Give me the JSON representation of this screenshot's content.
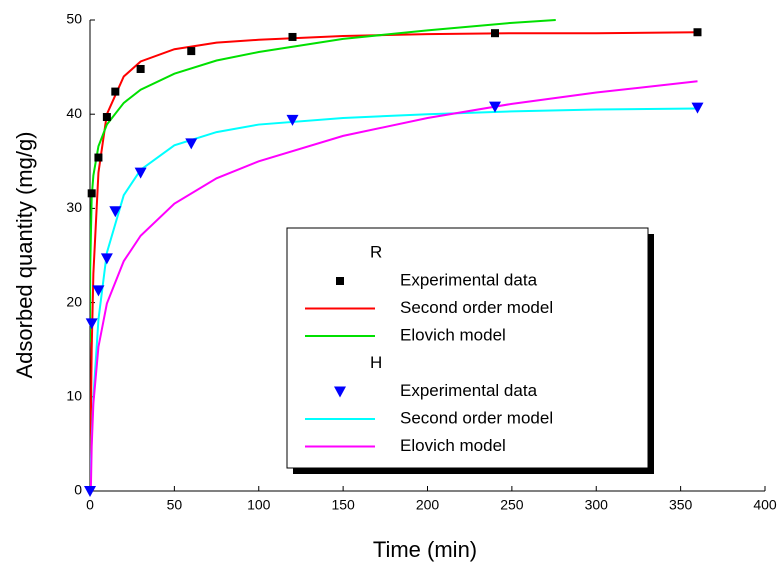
{
  "chart_data": {
    "type": "scatter-line",
    "x_label": "Time (min)",
    "y_label": "Adsorbed quantity (mg/g)",
    "xlim": [
      0,
      400
    ],
    "xticks": [
      0,
      50,
      100,
      150,
      200,
      250,
      300,
      350,
      400
    ],
    "ylim": [
      0,
      50
    ],
    "yticks": [
      0,
      10,
      20,
      30,
      40,
      50
    ],
    "groups": [
      {
        "name": "R",
        "series": [
          {
            "name": "Experimental data",
            "kind": "scatter",
            "marker": "square",
            "color": "#000000",
            "x": [
              1,
              5,
              10,
              15,
              30,
              60,
              120,
              240,
              360
            ],
            "values": [
              31.6,
              35.4,
              39.7,
              42.4,
              44.8,
              46.7,
              48.2,
              48.6,
              48.7
            ]
          },
          {
            "name": "Second order model",
            "kind": "line",
            "color": "#ff0000",
            "x": [
              0,
              1,
              2,
              5,
              10,
              20,
              30,
              50,
              75,
              100,
              150,
              200,
              250,
              300,
              360
            ],
            "values": [
              0,
              15.1,
              23.1,
              33.8,
              40.0,
              44.0,
              45.6,
              46.9,
              47.6,
              47.9,
              48.3,
              48.5,
              48.6,
              48.6,
              48.7
            ]
          },
          {
            "name": "Elovich model",
            "kind": "line",
            "color": "#00e000",
            "x": [
              0.01,
              0.1,
              1,
              2,
              5,
              10,
              20,
              30,
              50,
              75,
              100,
              150,
              200,
              250,
              276
            ],
            "values": [
              15.8,
              23.5,
              31.2,
              33.5,
              36.6,
              38.9,
              41.2,
              42.6,
              44.3,
              45.7,
              46.6,
              48.0,
              48.9,
              49.7,
              50.0
            ]
          }
        ]
      },
      {
        "name": "H",
        "series": [
          {
            "name": "Experimental data",
            "kind": "scatter",
            "marker": "triangle-down",
            "color": "#0000ff",
            "x": [
              0,
              1,
              5,
              10,
              15,
              30,
              60,
              120,
              240,
              360
            ],
            "values": [
              0,
              17.8,
              21.3,
              24.7,
              29.7,
              33.8,
              36.9,
              39.4,
              40.8,
              40.7
            ]
          },
          {
            "name": "Second order model",
            "kind": "line",
            "color": "#00ffff",
            "x": [
              0,
              1,
              2,
              5,
              10,
              20,
              30,
              50,
              75,
              100,
              150,
              200,
              250,
              300,
              360
            ],
            "values": [
              0,
              5.6,
              9.9,
              18.2,
              25.3,
              31.4,
              34.1,
              36.7,
              38.1,
              38.9,
              39.6,
              40.0,
              40.3,
              40.5,
              40.6
            ]
          },
          {
            "name": "Elovich model",
            "kind": "line",
            "color": "#ff00ff",
            "x": [
              0.5,
              1,
              2,
              5,
              10,
              20,
              30,
              50,
              75,
              100,
              150,
              200,
              250,
              300,
              360
            ],
            "values": [
              0.1,
              4.7,
              9.3,
              15.3,
              19.9,
              24.4,
              27.1,
              30.5,
              33.2,
              35.0,
              37.7,
              39.6,
              41.1,
              42.3,
              43.5
            ]
          }
        ]
      }
    ]
  }
}
